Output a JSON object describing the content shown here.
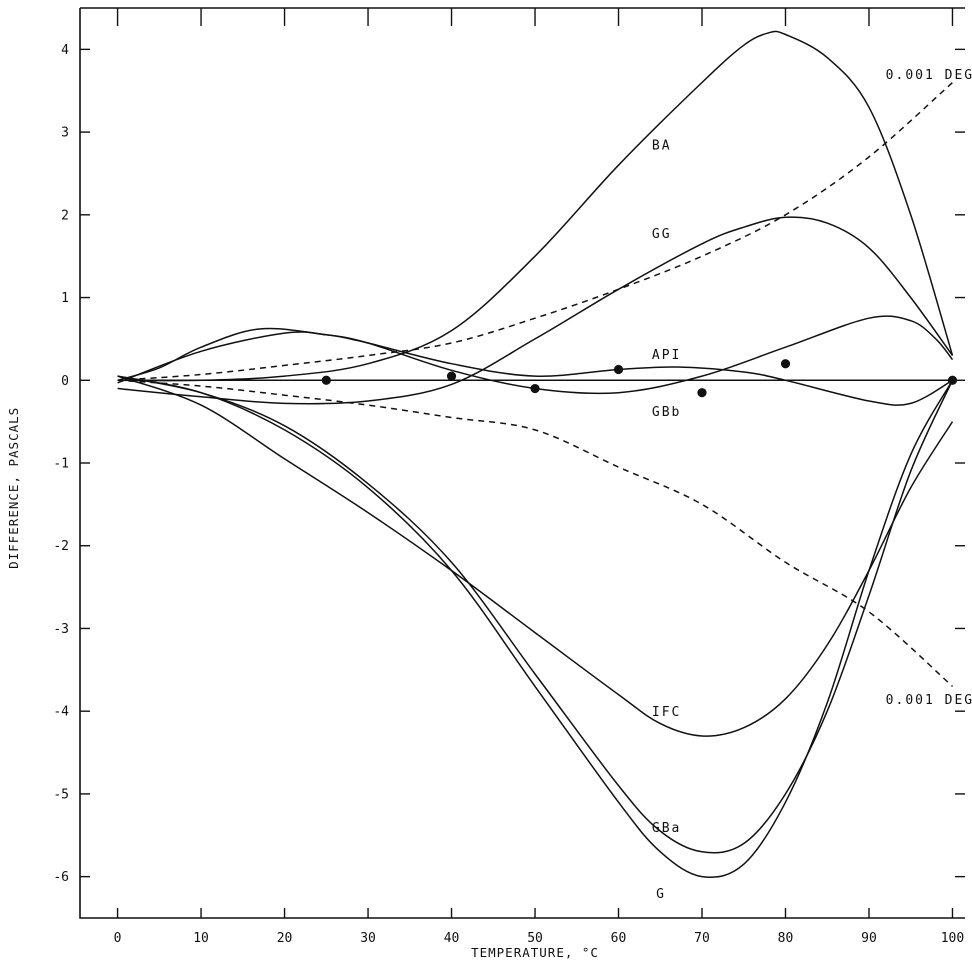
{
  "chart_data": {
    "type": "line",
    "xlabel": "TEMPERATURE, °C",
    "ylabel": "DIFFERENCE, PASCALS",
    "xlim": [
      -4.5,
      101.5
    ],
    "ylim": [
      -6.5,
      4.5
    ],
    "xticks": [
      0,
      10,
      20,
      30,
      40,
      50,
      60,
      70,
      80,
      90,
      100
    ],
    "yticks": [
      -6,
      -5,
      -4,
      -3,
      -2,
      -1,
      0,
      1,
      2,
      3,
      4
    ],
    "grid": false,
    "series": [
      {
        "name": "BA",
        "style": "solid",
        "x": [
          0,
          10,
          20,
          30,
          40,
          50,
          60,
          70,
          75,
          78,
          80,
          85,
          90,
          95,
          100
        ],
        "y": [
          0,
          0,
          0.05,
          0.2,
          0.6,
          1.5,
          2.6,
          3.6,
          4.05,
          4.2,
          4.18,
          3.9,
          3.3,
          2.0,
          0.3
        ]
      },
      {
        "name": "GG",
        "style": "solid",
        "x": [
          0,
          10,
          20,
          30,
          40,
          50,
          60,
          70,
          75,
          80,
          85,
          90,
          95,
          100
        ],
        "y": [
          -0.1,
          -0.2,
          -0.28,
          -0.25,
          -0.05,
          0.5,
          1.1,
          1.65,
          1.85,
          1.97,
          1.9,
          1.6,
          1.0,
          0.3
        ]
      },
      {
        "name": "API",
        "style": "solid",
        "x": [
          0,
          5,
          10,
          17,
          25,
          30,
          40,
          50,
          60,
          67,
          75,
          80,
          90,
          95,
          100
        ],
        "y": [
          0,
          0.15,
          0.4,
          0.62,
          0.55,
          0.45,
          0.2,
          0.05,
          0.13,
          0.16,
          0.1,
          0.0,
          -0.25,
          -0.28,
          0
        ]
      },
      {
        "name": "GBb",
        "style": "solid",
        "x": [
          0,
          10,
          20,
          25,
          30,
          40,
          50,
          60,
          70,
          80,
          90,
          95,
          98,
          100
        ],
        "y": [
          -0.03,
          0.35,
          0.57,
          0.55,
          0.45,
          0.12,
          -0.1,
          -0.15,
          0.05,
          0.4,
          0.75,
          0.72,
          0.5,
          0.25
        ]
      },
      {
        "name": "IFC",
        "style": "solid",
        "x": [
          0,
          10,
          20,
          30,
          40,
          50,
          60,
          65,
          70,
          75,
          80,
          85,
          90,
          95,
          100
        ],
        "y": [
          0.05,
          -0.3,
          -0.95,
          -1.6,
          -2.3,
          -3.05,
          -3.8,
          -4.15,
          -4.3,
          -4.2,
          -3.85,
          -3.2,
          -2.3,
          -1.3,
          -0.5
        ]
      },
      {
        "name": "GBa",
        "style": "solid",
        "x": [
          0,
          10,
          20,
          30,
          40,
          50,
          60,
          65,
          70,
          75,
          80,
          85,
          90,
          95,
          100
        ],
        "y": [
          0.05,
          -0.15,
          -0.55,
          -1.25,
          -2.2,
          -3.55,
          -4.9,
          -5.45,
          -5.7,
          -5.6,
          -5.0,
          -4.0,
          -2.6,
          -1.1,
          0
        ]
      },
      {
        "name": "G",
        "style": "solid",
        "x": [
          0,
          10,
          20,
          30,
          40,
          50,
          60,
          65,
          70,
          75,
          80,
          85,
          90,
          95,
          100
        ],
        "y": [
          0.05,
          -0.15,
          -0.6,
          -1.3,
          -2.3,
          -3.7,
          -5.1,
          -5.7,
          -6.0,
          -5.85,
          -5.1,
          -3.9,
          -2.3,
          -0.9,
          0
        ]
      },
      {
        "name": "0.001 DEG",
        "style": "dashed",
        "x": [
          0,
          10,
          20,
          30,
          40,
          50,
          60,
          70,
          80,
          90,
          100
        ],
        "y": [
          0,
          0.07,
          0.18,
          0.3,
          0.45,
          0.75,
          1.1,
          1.5,
          2.0,
          2.7,
          3.6
        ]
      },
      {
        "name": "0.001 DEG",
        "style": "dashed",
        "x": [
          0,
          10,
          20,
          30,
          40,
          50,
          60,
          70,
          80,
          90,
          100
        ],
        "y": [
          0,
          -0.07,
          -0.18,
          -0.3,
          -0.45,
          -0.6,
          -1.05,
          -1.5,
          -2.2,
          -2.8,
          -3.7
        ]
      }
    ],
    "points": {
      "x": [
        25,
        40,
        50,
        60,
        70,
        80,
        100
      ],
      "y": [
        0,
        0.05,
        -0.1,
        0.13,
        -0.15,
        0.2,
        0
      ]
    },
    "curve_labels": [
      {
        "text": "BA",
        "x": 64,
        "y": 2.85
      },
      {
        "text": "GG",
        "x": 64,
        "y": 1.78
      },
      {
        "text": "API",
        "x": 64,
        "y": 0.32
      },
      {
        "text": "GBb",
        "x": 64,
        "y": -0.37
      },
      {
        "text": "IFC",
        "x": 64,
        "y": -4.0
      },
      {
        "text": "GBa",
        "x": 64,
        "y": -5.4
      },
      {
        "text": "G",
        "x": 64.5,
        "y": -6.2
      },
      {
        "text": "0.001 DEG",
        "x": 92,
        "y": 3.7
      },
      {
        "text": "0.001 DEG",
        "x": 92,
        "y": -3.85
      }
    ]
  }
}
